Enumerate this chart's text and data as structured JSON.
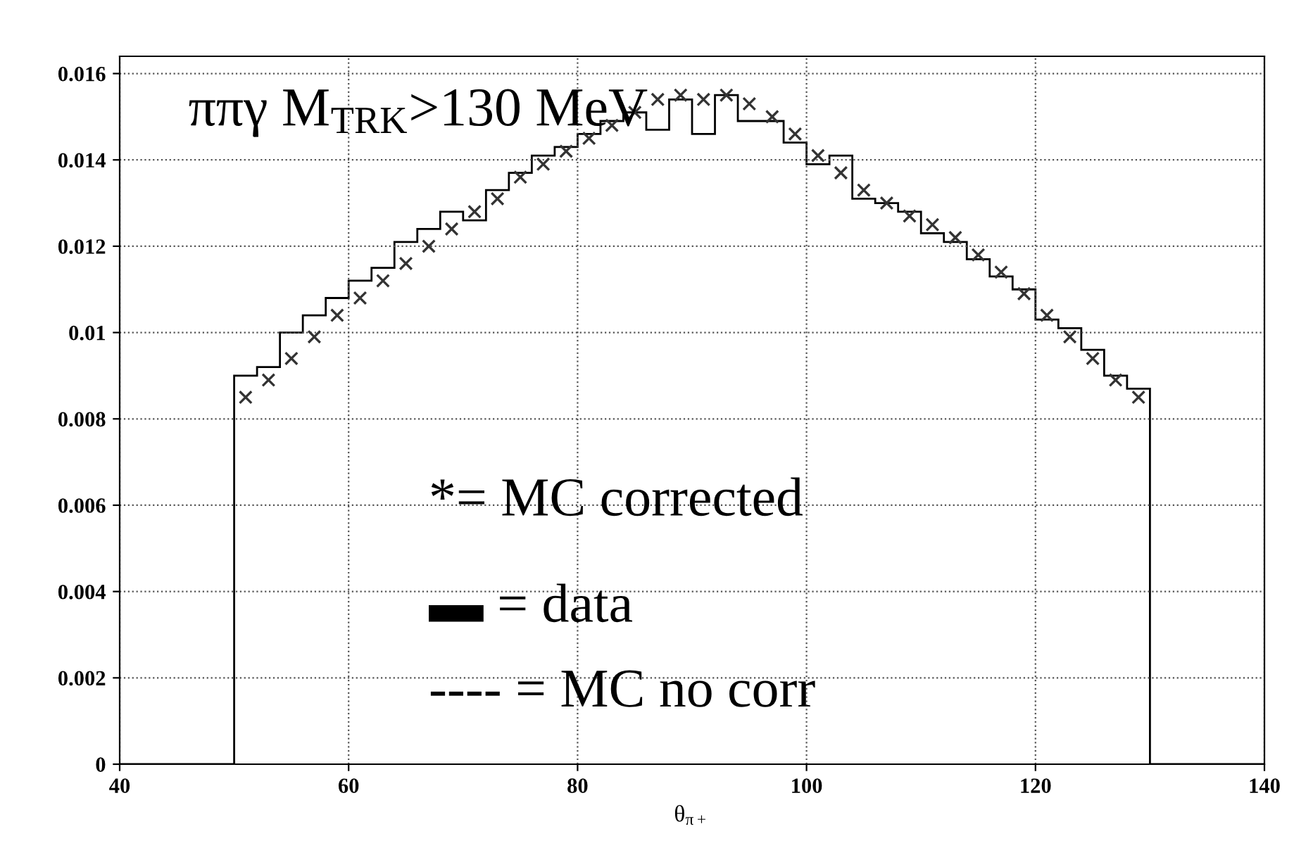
{
  "chart_data": {
    "type": "histogram",
    "xlabel": "θ$_{π+}$",
    "annotations": [
      "ππγ M$_{TRK}$>130 MeV",
      "*= MC corrected",
      "▬ = data",
      "---- = MC no corr"
    ],
    "bins": [
      40,
      42,
      44,
      46,
      48,
      50,
      52,
      54,
      56,
      58,
      60,
      62,
      64,
      66,
      68,
      70,
      72,
      74,
      76,
      78,
      80,
      82,
      84,
      86,
      88,
      90,
      92,
      94,
      96,
      98,
      100,
      102,
      104,
      106,
      108,
      110,
      112,
      114,
      116,
      118,
      120,
      122,
      124,
      126,
      128,
      130,
      132,
      134,
      136,
      138,
      140
    ],
    "color": "#000000",
    "values": [
      0,
      0,
      0,
      0,
      0,
      0.009,
      0.0092,
      0.01,
      0.0104,
      0.0108,
      0.0112,
      0.0115,
      0.0121,
      0.0124,
      0.0128,
      0.0126,
      0.0133,
      0.0137,
      0.0141,
      0.0143,
      0.0146,
      0.0149,
      0.0151,
      0.0147,
      0.0154,
      0.0146,
      0.0155,
      0.0149,
      0.0149,
      0.0144,
      0.0139,
      0.0141,
      0.0131,
      0.013,
      0.0128,
      0.0123,
      0.0121,
      0.0117,
      0.0113,
      0.011,
      0.0103,
      0.0101,
      0.0096,
      0.009,
      0.0087,
      0,
      0,
      0,
      0,
      0
    ],
    "series": [
      {
        "type": "scatter",
        "color": "#333333",
        "marker": "cross",
        "x": [
          51,
          53,
          55,
          57,
          59,
          61,
          63,
          65,
          67,
          69,
          71,
          73,
          75,
          77,
          79,
          81,
          83,
          85,
          87,
          89,
          91,
          93,
          95,
          97,
          99,
          101,
          103,
          105,
          107,
          109,
          111,
          113,
          115,
          117,
          119,
          121,
          123,
          125,
          127,
          129
        ],
        "values": [
          0.0085,
          0.0089,
          0.0094,
          0.0099,
          0.0104,
          0.0108,
          0.0112,
          0.0116,
          0.012,
          0.0124,
          0.0128,
          0.0131,
          0.0136,
          0.0139,
          0.0142,
          0.0145,
          0.0148,
          0.0151,
          0.0154,
          0.0155,
          0.0154,
          0.0155,
          0.0153,
          0.015,
          0.0146,
          0.0141,
          0.0137,
          0.0133,
          0.013,
          0.0127,
          0.0125,
          0.0122,
          0.0118,
          0.0114,
          0.0109,
          0.0104,
          0.0099,
          0.0094,
          0.0089,
          0.0085
        ]
      }
    ],
    "xlim": [
      40,
      140
    ],
    "xticks": [
      40,
      60,
      80,
      100,
      120,
      140
    ],
    "ylim": [
      0,
      0.0164
    ],
    "yticks": [
      0,
      0.002,
      0.004,
      0.006,
      0.008,
      0.01,
      0.012,
      0.014,
      0.016
    ],
    "grid": true
  }
}
